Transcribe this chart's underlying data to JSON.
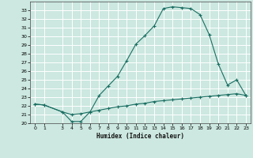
{
  "xlabel": "Humidex (Indice chaleur)",
  "background_color": "#cce8e0",
  "grid_color": "#ffffff",
  "line_color": "#1a6e62",
  "xlim": [
    -0.5,
    23.5
  ],
  "ylim": [
    20,
    34
  ],
  "xticks": [
    0,
    1,
    3,
    4,
    5,
    6,
    7,
    8,
    9,
    10,
    11,
    12,
    13,
    14,
    15,
    16,
    17,
    18,
    19,
    20,
    21,
    22,
    23
  ],
  "yticks": [
    20,
    21,
    22,
    23,
    24,
    25,
    26,
    27,
    28,
    29,
    30,
    31,
    32,
    33
  ],
  "curve1_x": [
    0,
    1,
    3,
    4,
    5,
    6,
    7,
    8,
    9,
    10,
    11,
    12,
    13,
    14,
    15,
    16,
    17,
    18,
    19,
    20,
    21,
    22,
    23
  ],
  "curve1_y": [
    22.2,
    22.1,
    21.3,
    20.2,
    20.2,
    21.3,
    23.2,
    24.3,
    25.4,
    27.2,
    29.1,
    30.1,
    31.2,
    33.2,
    33.4,
    33.3,
    33.2,
    32.5,
    30.2,
    26.8,
    24.4,
    25.0,
    23.2
  ],
  "curve2_x": [
    0,
    1,
    3,
    4,
    5,
    6,
    7,
    8,
    9,
    10,
    11,
    12,
    13,
    14,
    15,
    16,
    17,
    18,
    19,
    20,
    21,
    22,
    23
  ],
  "curve2_y": [
    22.2,
    22.1,
    21.3,
    21.0,
    21.1,
    21.3,
    21.5,
    21.7,
    21.9,
    22.0,
    22.2,
    22.3,
    22.5,
    22.6,
    22.7,
    22.8,
    22.9,
    23.0,
    23.1,
    23.2,
    23.3,
    23.4,
    23.2
  ]
}
